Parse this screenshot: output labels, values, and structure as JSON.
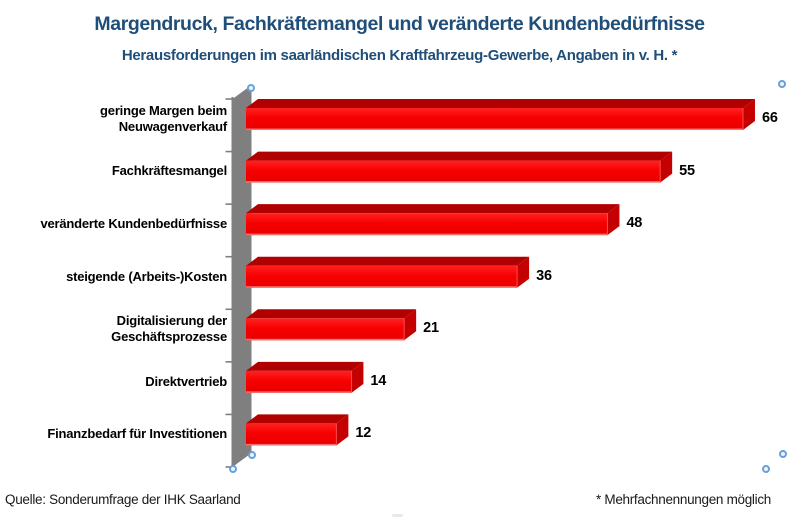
{
  "title": "Margendruck, Fachkräftemangel und veränderte Kundenbedürfnisse",
  "subtitle": "Herausforderungen im saarländischen Kraftfahrzeug-Gewerbe, Angaben in v. H. *",
  "footer": {
    "source": "Quelle: Sonderumfrage der IHK Saarland",
    "note": "* Mehrfachnennungen möglich"
  },
  "colors": {
    "title_blue": "#1F4E79",
    "bar_face": "#F70000",
    "bar_face_light": "#FF2121",
    "bar_face_dark": "#E60000",
    "bar_top": "#B00000",
    "bar_end": "#C40000",
    "bar_edge_highlight": "#FF8080",
    "wall_gray": "#7F7F7F",
    "handle_blue": "#68A1D9",
    "text_black": "#000000"
  },
  "chart_data": {
    "type": "bar",
    "orientation": "horizontal",
    "style": "3d",
    "title": "Margendruck, Fachkräftemangel und veränderte Kundenbedürfnisse",
    "subtitle": "Herausforderungen im saarländischen Kraftfahrzeug-Gewerbe, Angaben in v. H. *",
    "categories": [
      "geringe Margen beim Neuwagenverkauf",
      "Fachkräftesmangel",
      "veränderte Kundenbedürfnisse",
      "steigende (Arbeits-)Kosten",
      "Digitalisierung der Geschäftsprozesse",
      "Direktvertrieb",
      "Finanzbedarf für Investitionen"
    ],
    "values": [
      66,
      55,
      48,
      36,
      21,
      14,
      12
    ],
    "value_labels_shown": true,
    "xlabel": "",
    "ylabel": "",
    "xlim_estimated": [
      0,
      70
    ],
    "value_axis_shown": false,
    "grid": false,
    "legend": "none"
  }
}
